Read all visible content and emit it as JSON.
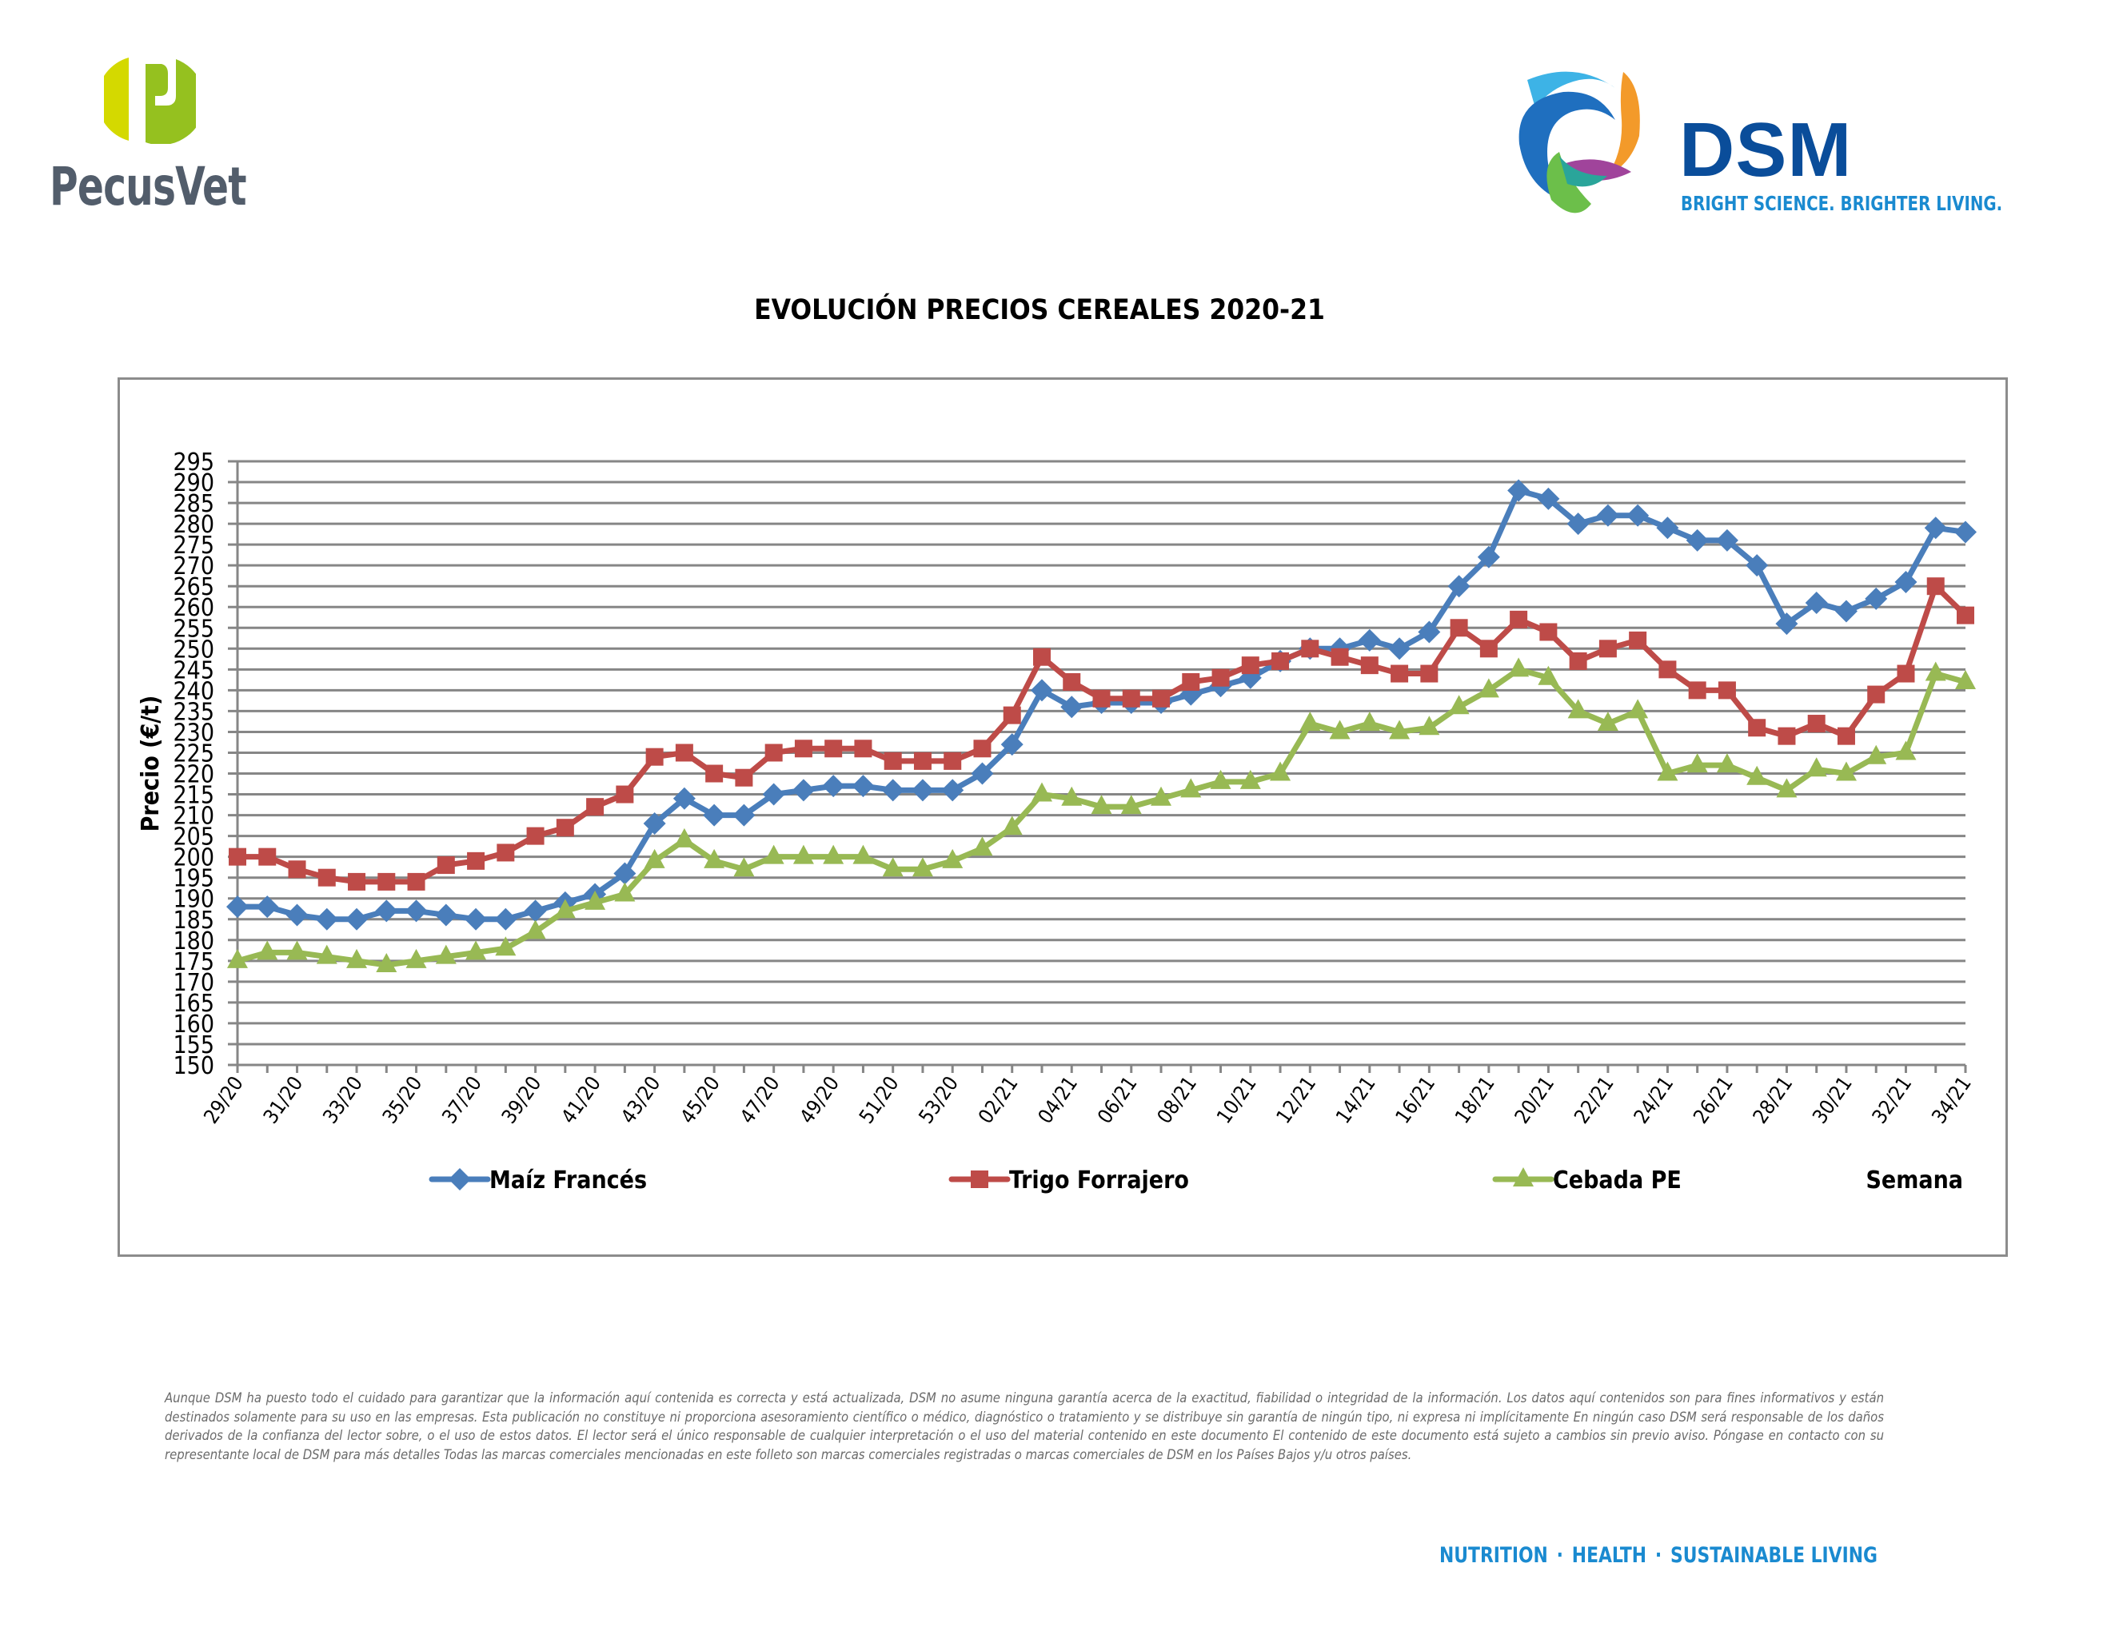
{
  "header": {
    "left_logo": {
      "name": "PecusVet",
      "text": "PecusVet",
      "icon": "pecusvet-p-icon",
      "colors": {
        "left": "#d4d900",
        "right": "#95c11f",
        "text": "#525d6b"
      }
    },
    "right_logo": {
      "name": "DSM",
      "text": "DSM",
      "tagline": "BRIGHT SCIENCE. BRIGHTER LIVING.",
      "icon": "dsm-swirl-icon",
      "colors": {
        "word": "#0a4d9a",
        "tagline": "#1a8ad0"
      }
    }
  },
  "chart_data": {
    "type": "line",
    "title": "EVOLUCIÓN PRECIOS CEREALES 2020-21",
    "xlabel": "Semana",
    "ylabel": "Precio (€/t)",
    "ylim": [
      150,
      295
    ],
    "ytick_step": 5,
    "grid": true,
    "legend_position": "bottom",
    "x": [
      "29/20",
      "30/20",
      "31/20",
      "32/20",
      "33/20",
      "34/20",
      "35/20",
      "36/20",
      "37/20",
      "38/20",
      "39/20",
      "40/20",
      "41/20",
      "42/20",
      "43/20",
      "44/20",
      "45/20",
      "46/20",
      "47/20",
      "48/20",
      "49/20",
      "50/20",
      "51/20",
      "52/20",
      "53/20",
      "01/21",
      "02/21",
      "03/21",
      "04/21",
      "05/21",
      "06/21",
      "07/21",
      "08/21",
      "09/21",
      "10/21",
      "11/21",
      "12/21",
      "13/21",
      "14/21",
      "15/21",
      "16/21",
      "17/21",
      "18/21",
      "19/21",
      "20/21",
      "21/21",
      "22/21",
      "23/21",
      "24/21",
      "25/21",
      "26/21",
      "27/21",
      "28/21",
      "29/21",
      "30/21",
      "31/21",
      "32/21",
      "33/21",
      "34/21"
    ],
    "x_tick_labels_every": 2,
    "series": [
      {
        "name": "Maíz Francés",
        "color": "#4a7ebb",
        "marker": "diamond",
        "values": [
          188,
          188,
          186,
          185,
          185,
          187,
          187,
          186,
          185,
          185,
          187,
          189,
          191,
          196,
          208,
          214,
          210,
          210,
          215,
          216,
          217,
          217,
          216,
          216,
          216,
          220,
          227,
          240,
          236,
          237,
          237,
          237,
          239,
          241,
          243,
          247,
          250,
          250,
          252,
          250,
          254,
          265,
          272,
          288,
          286,
          280,
          282,
          282,
          279,
          276,
          276,
          270,
          256,
          261,
          259,
          262,
          266,
          279,
          278
        ]
      },
      {
        "name": "Trigo Forrajero",
        "color": "#be4b48",
        "marker": "square",
        "values": [
          200,
          200,
          197,
          195,
          194,
          194,
          194,
          198,
          199,
          201,
          205,
          207,
          212,
          215,
          224,
          225,
          220,
          219,
          225,
          226,
          226,
          226,
          223,
          223,
          223,
          226,
          234,
          248,
          242,
          238,
          238,
          238,
          242,
          243,
          246,
          247,
          250,
          248,
          246,
          244,
          244,
          255,
          250,
          257,
          254,
          247,
          250,
          252,
          245,
          240,
          240,
          231,
          229,
          232,
          229,
          239,
          244,
          265,
          258
        ]
      },
      {
        "name": "Cebada PE",
        "color": "#98b954",
        "marker": "triangle",
        "values": [
          175,
          177,
          177,
          176,
          175,
          174,
          175,
          176,
          177,
          178,
          182,
          187,
          189,
          191,
          199,
          204,
          199,
          197,
          200,
          200,
          200,
          200,
          197,
          197,
          199,
          202,
          207,
          215,
          214,
          212,
          212,
          214,
          216,
          218,
          218,
          220,
          232,
          230,
          232,
          230,
          231,
          236,
          240,
          245,
          243,
          235,
          232,
          235,
          220,
          222,
          222,
          219,
          216,
          221,
          220,
          224,
          225,
          244,
          242
        ]
      }
    ]
  },
  "disclaimer": "Aunque DSM ha puesto todo el cuidado para garantizar que la información aquí contenida es correcta y está actualizada, DSM no asume ninguna garantía acerca de la exactitud, fiabilidad o integridad de la información. Los datos aquí contenidos son para fines informativos y están destinados solamente para su uso en las empresas. Esta publicación no constituye ni proporciona asesoramiento científico o médico, diagnóstico o tratamiento y se distribuye sin garantía de ningún tipo, ni expresa ni implícitamente En ningún caso DSM será responsable de los daños derivados de la confianza del lector sobre, o el uso de estos datos. El lector será el único responsable de cualquier interpretación o el uso del material contenido en este documento El contenido de este documento está sujeto a cambios sin previo aviso. Póngase en contacto con su representante local de DSM para más detalles Todas las marcas comerciales mencionadas en este folleto son marcas comerciales registradas o marcas comerciales de DSM en los Países Bajos y/u otros países.",
  "footer": {
    "items": [
      "NUTRITION",
      "HEALTH",
      "SUSTAINABLE LIVING"
    ],
    "separator": "·",
    "color": "#1a8ad0"
  }
}
